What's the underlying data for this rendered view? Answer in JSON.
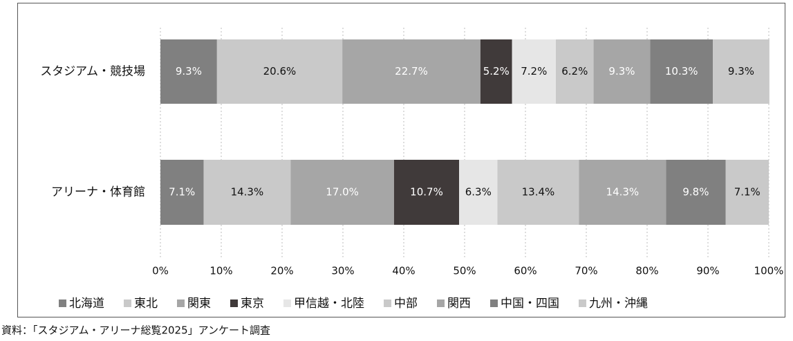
{
  "chart_data": {
    "type": "stacked_barh",
    "categories": [
      "スタジアム・競技場",
      "アリーナ・体育館"
    ],
    "series": [
      {
        "name": "北海道",
        "color": "#808080",
        "values": [
          9.3,
          7.1
        ],
        "value_labels": [
          "9.3%",
          "7.1%"
        ]
      },
      {
        "name": "東北",
        "color": "#c9c9c9",
        "values": [
          20.6,
          14.3
        ],
        "value_labels": [
          "20.6%",
          "14.3%"
        ]
      },
      {
        "name": "関東",
        "color": "#a6a6a6",
        "values": [
          22.7,
          17
        ],
        "value_labels": [
          "22.7%",
          "17.0%"
        ]
      },
      {
        "name": "東京",
        "color": "#403a3a",
        "values": [
          5.2,
          10.7
        ],
        "value_labels": [
          "5.2%",
          "10.7%"
        ]
      },
      {
        "name": "甲信越・北陸",
        "color": "#e6e6e6",
        "values": [
          7.2,
          6.3
        ],
        "value_labels": [
          "7.2%",
          "6.3%"
        ]
      },
      {
        "name": "中部",
        "color": "#c9c9c9",
        "values": [
          6.2,
          13.4
        ],
        "value_labels": [
          "6.2%",
          "13.4%"
        ]
      },
      {
        "name": "関西",
        "color": "#a6a6a6",
        "values": [
          9.3,
          14.3
        ],
        "value_labels": [
          "9.3%",
          "14.3%"
        ]
      },
      {
        "name": "中国・四国",
        "color": "#808080",
        "values": [
          10.3,
          9.8
        ],
        "value_labels": [
          "10.3%",
          "9.8%"
        ]
      },
      {
        "name": "九州・沖縄",
        "color": "#c9c9c9",
        "values": [
          9.3,
          7.1
        ],
        "value_labels": [
          "9.3%",
          "7.1%"
        ]
      }
    ],
    "xlim": [
      0,
      100
    ],
    "xticks": [
      {
        "value": 0,
        "label": "0%"
      },
      {
        "value": 10,
        "label": "10%"
      },
      {
        "value": 20,
        "label": "20%"
      },
      {
        "value": 30,
        "label": "30%"
      },
      {
        "value": 40,
        "label": "40%"
      },
      {
        "value": 50,
        "label": "50%"
      },
      {
        "value": 60,
        "label": "60%"
      },
      {
        "value": 70,
        "label": "70%"
      },
      {
        "value": 80,
        "label": "80%"
      },
      {
        "value": 90,
        "label": "90%"
      },
      {
        "value": 100,
        "label": "100%"
      }
    ],
    "grid": true,
    "legend": "bottom",
    "source": "資料：「スタジアム・アリーナ総覧2025」アンケート調査"
  }
}
